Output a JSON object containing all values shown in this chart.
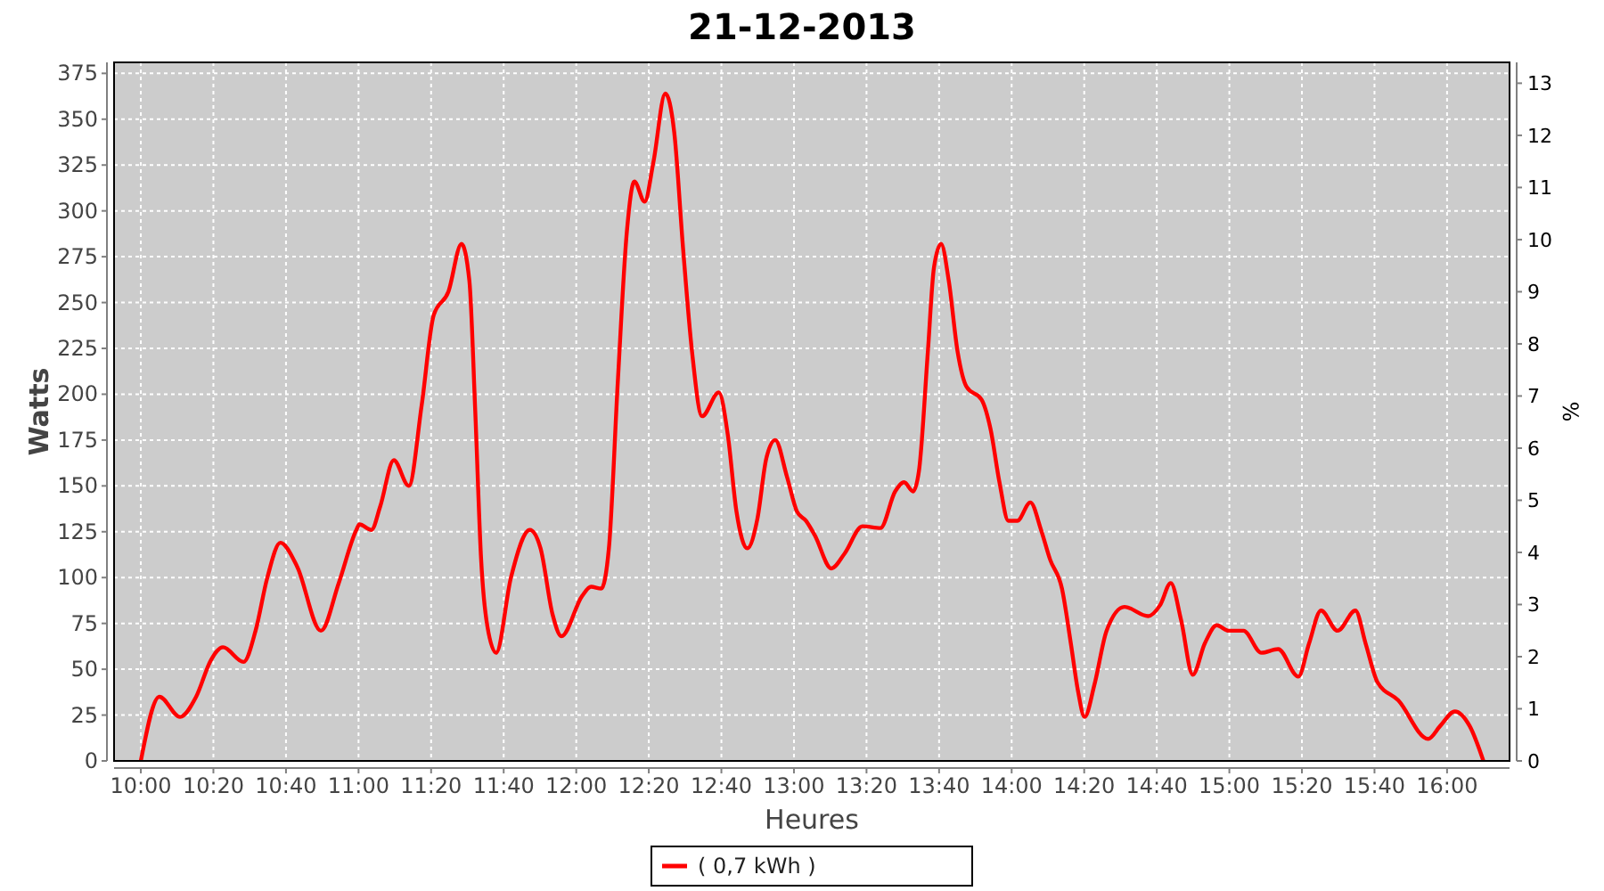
{
  "chart_data": {
    "type": "line",
    "title": "21-12-2013",
    "xlabel": "Heures",
    "ylabel": "Watts",
    "y2label": "%",
    "xlim": [
      9.877,
      16.287
    ],
    "xticks": [
      {
        "value": 10,
        "label": "10:00"
      },
      {
        "value": 10.3333,
        "label": "10:20"
      },
      {
        "value": 10.6667,
        "label": "10:40"
      },
      {
        "value": 11,
        "label": "11:00"
      },
      {
        "value": 11.3333,
        "label": "11:20"
      },
      {
        "value": 11.6667,
        "label": "11:40"
      },
      {
        "value": 12,
        "label": "12:00"
      },
      {
        "value": 12.3333,
        "label": "12:20"
      },
      {
        "value": 12.6667,
        "label": "12:40"
      },
      {
        "value": 13,
        "label": "13:00"
      },
      {
        "value": 13.3333,
        "label": "13:20"
      },
      {
        "value": 13.6667,
        "label": "13:40"
      },
      {
        "value": 14,
        "label": "14:00"
      },
      {
        "value": 14.3333,
        "label": "14:20"
      },
      {
        "value": 14.6667,
        "label": "14:40"
      },
      {
        "value": 15,
        "label": "15:00"
      },
      {
        "value": 15.3333,
        "label": "15:20"
      },
      {
        "value": 15.6667,
        "label": "15:40"
      },
      {
        "value": 16,
        "label": "16:00"
      }
    ],
    "ylim": [
      0,
      381
    ],
    "yticks": [
      0,
      25,
      50,
      75,
      100,
      125,
      150,
      175,
      200,
      225,
      250,
      275,
      300,
      325,
      350,
      375
    ],
    "y2lim": [
      0,
      13.4
    ],
    "y2ticks": [
      0,
      1,
      2,
      3,
      4,
      5,
      6,
      7,
      8,
      9,
      10,
      11,
      12,
      13
    ],
    "grid": true,
    "legend": "bottom",
    "line_style": "solid",
    "marker": "none",
    "series": [
      {
        "name": "( 0,7 kWh )",
        "color": "#ff0000",
        "x": [
          10.0,
          10.085,
          10.18,
          10.254,
          10.322,
          10.377,
          10.472,
          10.527,
          10.581,
          10.641,
          10.718,
          10.827,
          10.909,
          10.99,
          11.004,
          11.059,
          11.1,
          11.162,
          11.231,
          11.29,
          11.345,
          11.413,
          11.473,
          11.509,
          11.536,
          11.563,
          11.591,
          11.632,
          11.7,
          11.787,
          11.836,
          11.891,
          11.932,
          12.027,
          12.068,
          12.115,
          12.15,
          12.191,
          12.232,
          12.267,
          12.314,
          12.355,
          12.409,
          12.45,
          12.491,
          12.532,
          12.578,
          12.655,
          12.696,
          12.736,
          12.786,
          12.832,
          12.873,
          12.914,
          12.968,
          13.014,
          13.055,
          13.096,
          13.172,
          13.232,
          13.315,
          13.397,
          13.465,
          13.506,
          13.547,
          13.574,
          13.615,
          13.643,
          13.676,
          13.711,
          13.752,
          13.793,
          13.862,
          13.903,
          13.944,
          13.985,
          14.026,
          14.086,
          14.135,
          14.176,
          14.231,
          14.272,
          14.305,
          14.335,
          14.381,
          14.436,
          14.518,
          14.627,
          14.682,
          14.731,
          14.778,
          14.832,
          14.887,
          14.942,
          14.997,
          15.065,
          15.147,
          15.224,
          15.317,
          15.366,
          15.421,
          15.497,
          15.579,
          15.626,
          15.68,
          15.776,
          15.913,
          15.968,
          16.036,
          16.104,
          16.167
        ],
        "values": [
          0,
          35,
          24,
          35,
          55,
          62,
          54,
          71,
          100,
          119,
          106,
          71,
          97,
          126,
          129,
          126,
          139,
          164,
          150,
          194,
          243,
          256,
          282,
          262,
          191,
          110,
          74,
          59,
          100,
          126,
          116,
          80,
          68,
          90,
          95,
          94,
          116,
          207,
          288,
          316,
          305,
          327,
          364,
          343,
          279,
          223,
          188,
          201,
          178,
          136,
          116,
          132,
          165,
          175,
          155,
          136,
          131,
          123,
          105,
          113,
          128,
          127,
          147,
          152,
          147,
          158,
          223,
          269,
          282,
          262,
          223,
          204,
          197,
          181,
          152,
          131,
          131,
          141,
          126,
          110,
          94,
          64,
          38,
          24,
          42,
          71,
          84,
          79,
          85,
          97,
          77,
          47,
          64,
          74,
          71,
          71,
          59,
          61,
          46,
          64,
          82,
          71,
          82,
          64,
          43,
          33,
          12,
          19,
          27,
          19,
          0
        ]
      }
    ]
  }
}
